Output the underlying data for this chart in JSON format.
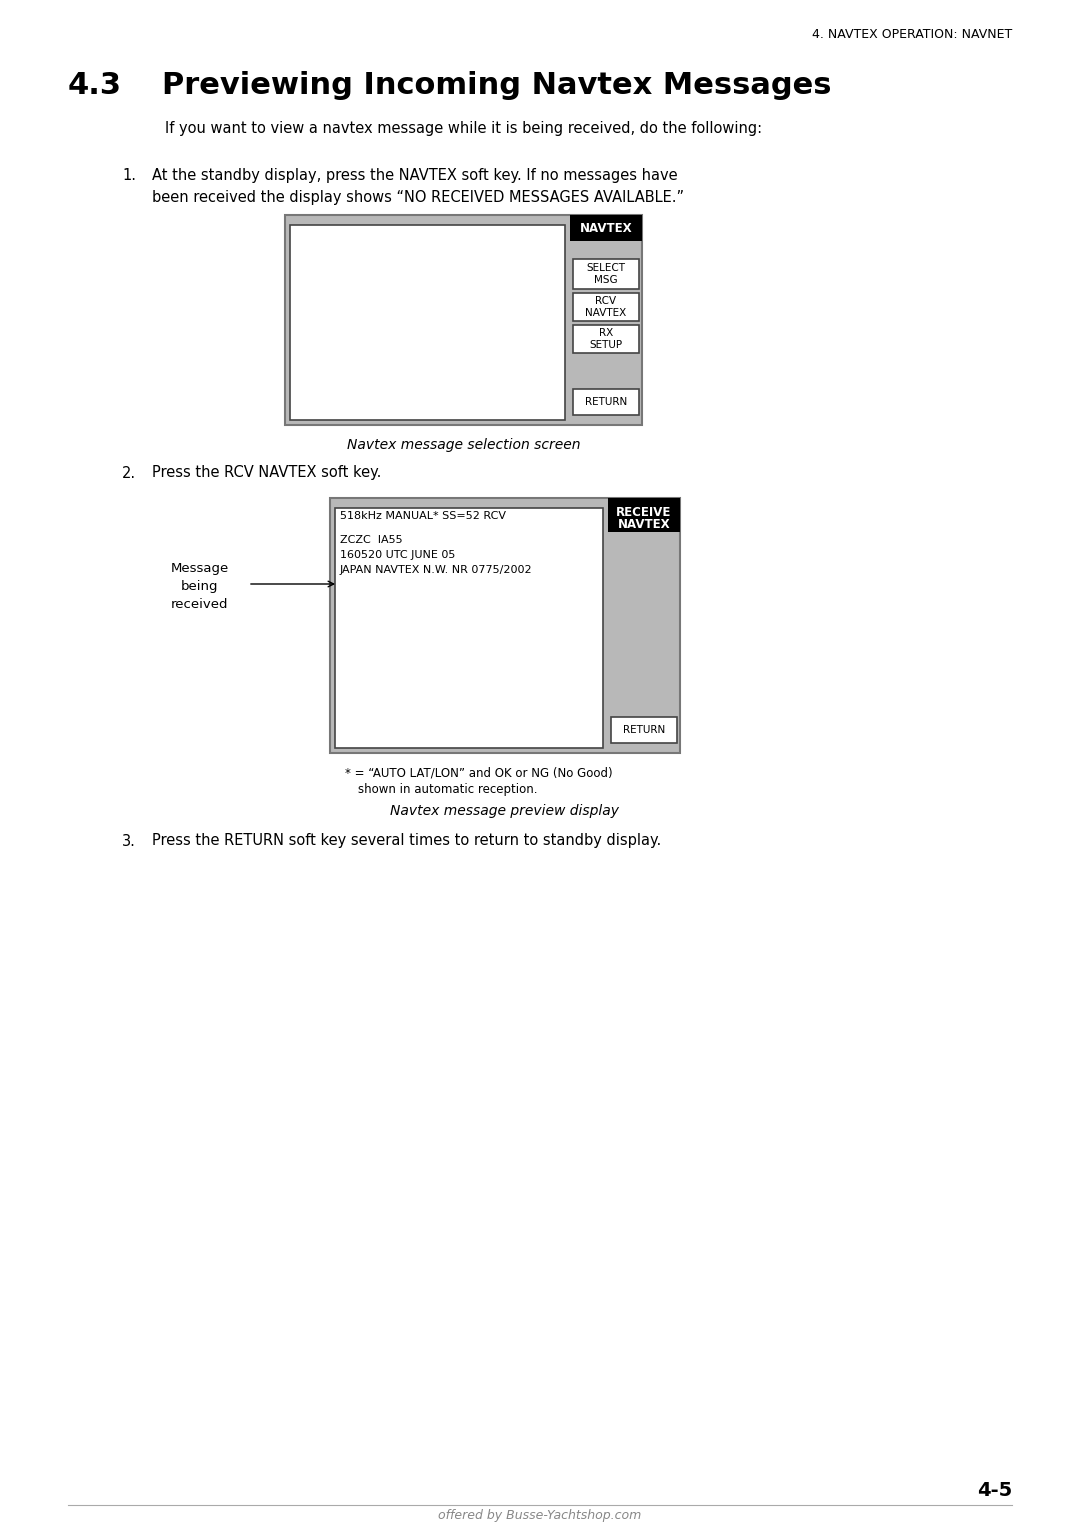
{
  "page_header": "4. NAVTEX OPERATION: NAVNET",
  "section_num": "4.3",
  "section_title": "Previewing Incoming Navtex Messages",
  "intro_text": "If you want to view a navtex message while it is being received, do the following:",
  "step1_line1": "At the standby display, press the NAVTEX soft key. If no messages have",
  "step1_line2": "been received the display shows “NO RECEIVED MESSAGES AVAILABLE.”",
  "step2_text": "Press the RCV NAVTEX soft key.",
  "step3_text": "Press the RETURN soft key several times to return to standby display.",
  "caption1": "Navtex message selection screen",
  "caption2": "Navtex message preview display",
  "screen2_header_label_line1": "RECEIVE",
  "screen2_header_label_line2": "NAVTEX",
  "screen2_status": "518kHz MANUAL* SS=52 RCV",
  "screen2_message_lines": [
    "ZCZC  IA55",
    "160520 UTC JUNE 05",
    "JAPAN NAVTEX N.W. NR 0775/2002"
  ],
  "arrow_label": "Message\nbeing\nreceived",
  "footnote1": "* = “AUTO LAT/LON” and OK or NG (No Good)",
  "footnote2": "shown in automatic reception.",
  "page_number": "4-5",
  "footer": "offered by Busse-Yachtshop.com",
  "bg_color": "#ffffff",
  "screen_bg": "#b8b8b8",
  "screen_inner_bg": "#ffffff",
  "button_black_bg": "#000000",
  "button_white_bg": "#ffffff",
  "text_color": "#000000",
  "gray_text": "#888888"
}
